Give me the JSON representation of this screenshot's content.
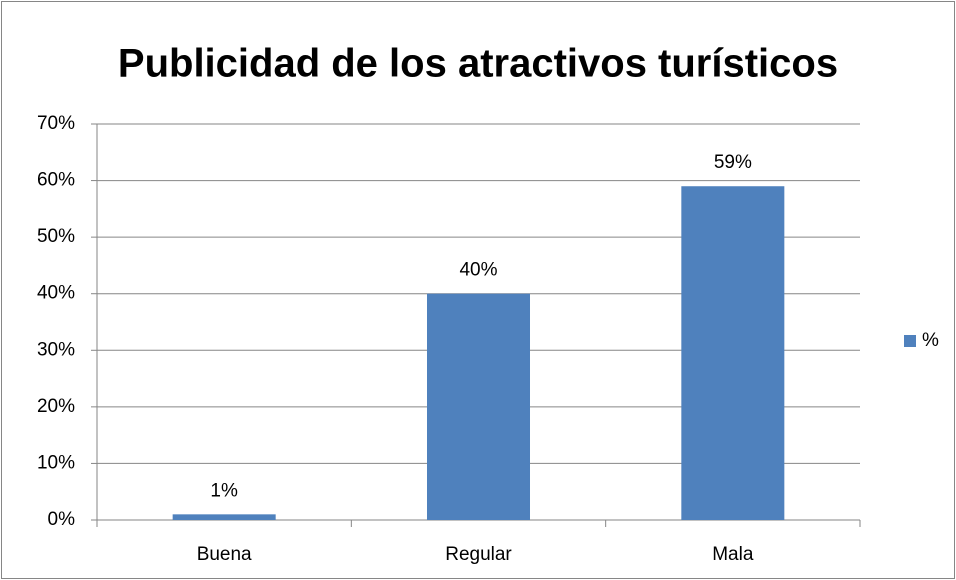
{
  "chart_data": {
    "type": "bar",
    "title": "Publicidad de los atractivos turísticos",
    "categories": [
      "Buena",
      "Regular",
      "Mala"
    ],
    "series": [
      {
        "name": "%",
        "color": "#4f81bd",
        "values": [
          1,
          40,
          59
        ],
        "value_labels": [
          "1%",
          "40%",
          "59%"
        ]
      }
    ],
    "ylim": [
      0,
      70
    ],
    "yticks": [
      {
        "value": 0,
        "label": "0%"
      },
      {
        "value": 10,
        "label": "10%"
      },
      {
        "value": 20,
        "label": "20%"
      },
      {
        "value": 30,
        "label": "30%"
      },
      {
        "value": 40,
        "label": "40%"
      },
      {
        "value": 50,
        "label": "50%"
      },
      {
        "value": 60,
        "label": "60%"
      },
      {
        "value": 70,
        "label": "70%"
      }
    ],
    "grid": true,
    "legend": "right"
  }
}
